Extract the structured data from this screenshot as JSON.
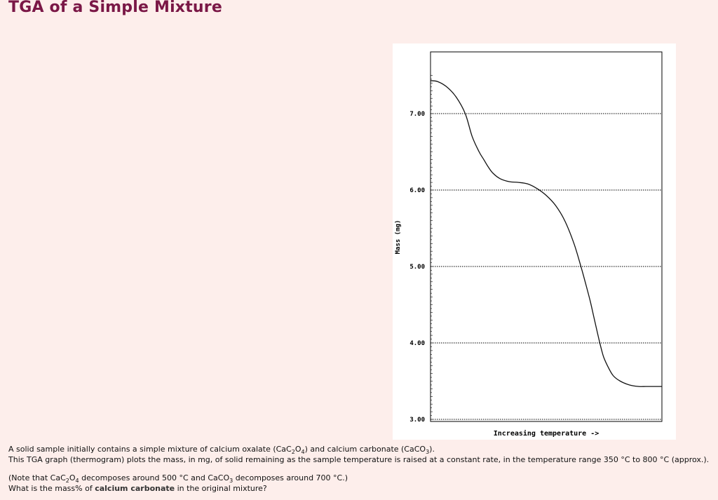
{
  "page": {
    "title": "TGA of a Simple Mixture"
  },
  "chart_data": {
    "type": "line",
    "title": "",
    "xlabel": "Increasing temperature ->",
    "ylabel": "Mass (mg)",
    "ylim": [
      3.0,
      7.5
    ],
    "yticks": [
      "3.00",
      "4.00",
      "5.00",
      "6.00",
      "7.00"
    ],
    "ytick_values": [
      3.0,
      4.0,
      5.0,
      6.0,
      7.0
    ],
    "xlim": [
      0,
      100
    ],
    "grid": true,
    "series": [
      {
        "x": [
          0,
          3,
          7,
          11,
          15,
          18,
          21,
          23,
          25,
          27,
          30,
          34,
          38,
          42,
          46,
          50,
          54,
          58,
          62,
          65,
          67,
          69,
          70.5,
          72,
          73,
          74,
          75,
          77,
          79,
          82,
          86,
          90,
          93,
          96,
          100
        ],
        "values": [
          7.43,
          7.42,
          7.35,
          7.22,
          7.0,
          6.7,
          6.5,
          6.4,
          6.3,
          6.22,
          6.15,
          6.11,
          6.1,
          6.08,
          6.02,
          5.93,
          5.8,
          5.6,
          5.3,
          5.0,
          4.78,
          4.55,
          4.35,
          4.15,
          4.02,
          3.9,
          3.8,
          3.67,
          3.57,
          3.5,
          3.45,
          3.43,
          3.43,
          3.43,
          3.43
        ]
      }
    ]
  },
  "text": {
    "p1_a": "A solid sample initially contains a simple mixture of calcium oxalate (CaC",
    "p1_sub1": "2",
    "p1_b": "O",
    "p1_sub2": "4",
    "p1_c": ") and calcium carbonate (CaCO",
    "p1_sub3": "3",
    "p1_d": ").",
    "p2": "This TGA graph (thermogram) plots the mass, in mg, of solid remaining as the sample temperature is raised at a constant rate, in the temperature range 350 °C to 800 °C (approx.).",
    "p3_a": "(Note that CaC",
    "p3_sub1": "2",
    "p3_b": "O",
    "p3_sub2": "4",
    "p3_c": " decomposes around 500 °C and CaCO",
    "p3_sub3": "3",
    "p3_d": " decomposes around 700 °C.)",
    "p4_a": "What is the mass% of ",
    "p4_bold": "calcium carbonate",
    "p4_b": " in the original mixture?"
  }
}
